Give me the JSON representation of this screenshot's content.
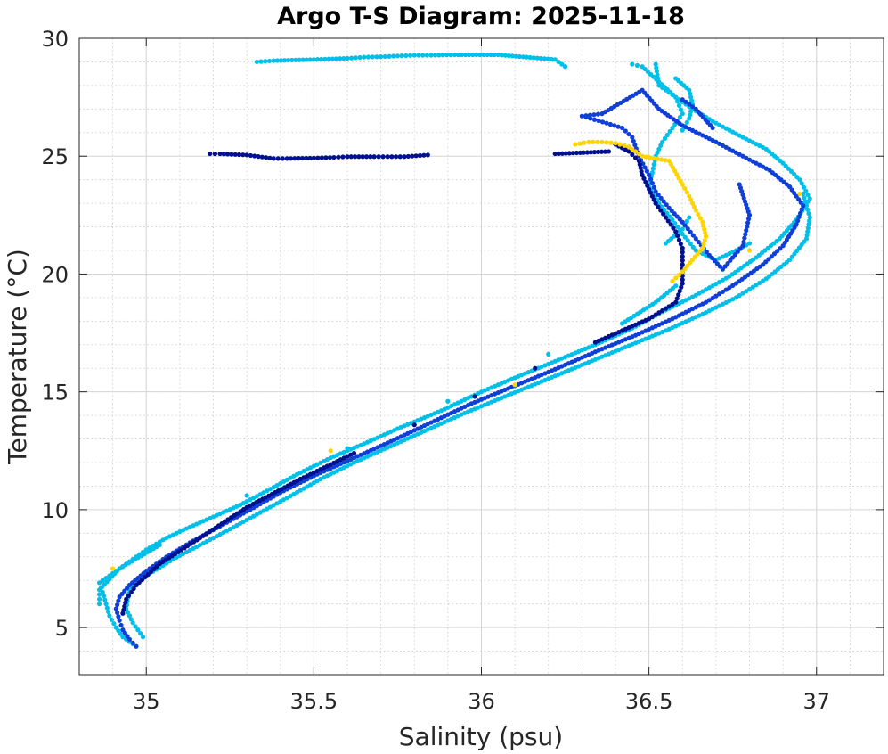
{
  "chart_data": {
    "type": "scatter",
    "title": "Argo T-S Diagram: 2025-11-18",
    "xlabel": "Salinity (psu)",
    "ylabel": "Temperature (°C)",
    "xlim": [
      34.8,
      37.2
    ],
    "ylim": [
      3,
      30
    ],
    "xticks": [
      "35",
      "35.5",
      "36",
      "36.5",
      "37"
    ],
    "yticks": [
      "5",
      "10",
      "15",
      "20",
      "25",
      "30"
    ],
    "grid": true,
    "minor_grid": true,
    "legend": "none",
    "series": [
      {
        "color": "#00bfe8",
        "points": [
          [
            34.96,
            4.3
          ],
          [
            34.93,
            4.6
          ],
          [
            34.91,
            5.0
          ],
          [
            34.89,
            5.5
          ],
          [
            34.88,
            6.0
          ],
          [
            34.87,
            6.5
          ],
          [
            34.86,
            6.9
          ],
          [
            34.9,
            7.3
          ],
          [
            34.95,
            7.8
          ],
          [
            35.0,
            8.3
          ],
          [
            35.06,
            8.8
          ],
          [
            35.12,
            9.2
          ],
          [
            35.2,
            9.7
          ],
          [
            35.28,
            10.2
          ],
          [
            35.36,
            10.8
          ],
          [
            35.45,
            11.5
          ],
          [
            35.55,
            12.2
          ],
          [
            35.65,
            12.8
          ],
          [
            35.76,
            13.5
          ],
          [
            35.88,
            14.2
          ],
          [
            36.0,
            15.0
          ],
          [
            36.1,
            15.6
          ],
          [
            36.22,
            16.3
          ],
          [
            36.34,
            17.0
          ],
          [
            36.45,
            17.7
          ],
          [
            36.54,
            18.4
          ],
          [
            36.64,
            19.1
          ],
          [
            36.74,
            19.9
          ],
          [
            36.82,
            20.7
          ],
          [
            36.89,
            21.5
          ],
          [
            36.94,
            22.3
          ],
          [
            36.98,
            23.2
          ],
          [
            36.95,
            24.0
          ],
          [
            36.9,
            24.7
          ],
          [
            36.85,
            25.3
          ],
          [
            36.78,
            25.8
          ],
          [
            36.7,
            26.4
          ],
          [
            36.63,
            27.0
          ],
          [
            36.58,
            27.5
          ],
          [
            36.53,
            28.0
          ],
          [
            36.52,
            28.9
          ],
          [
            34.99,
            4.6
          ],
          [
            34.96,
            5.2
          ],
          [
            34.94,
            5.8
          ],
          [
            34.95,
            6.6
          ],
          [
            35.0,
            7.2
          ],
          [
            35.08,
            7.9
          ],
          [
            35.16,
            8.5
          ],
          [
            35.24,
            9.1
          ],
          [
            35.33,
            9.8
          ],
          [
            35.42,
            10.5
          ],
          [
            35.52,
            11.3
          ],
          [
            35.62,
            12.0
          ],
          [
            35.73,
            12.7
          ],
          [
            35.84,
            13.4
          ],
          [
            35.95,
            14.1
          ],
          [
            36.07,
            14.8
          ],
          [
            36.19,
            15.5
          ],
          [
            36.31,
            16.2
          ],
          [
            36.43,
            16.9
          ],
          [
            36.55,
            17.6
          ],
          [
            36.66,
            18.3
          ],
          [
            36.76,
            19.0
          ],
          [
            36.85,
            19.8
          ],
          [
            36.92,
            20.6
          ],
          [
            36.97,
            21.5
          ],
          [
            36.98,
            22.4
          ],
          [
            36.96,
            23.4
          ],
          [
            34.86,
            6.0
          ],
          [
            34.86,
            6.6
          ],
          [
            34.92,
            7.5
          ],
          [
            35.04,
            8.5
          ],
          [
            35.3,
            10.6
          ],
          [
            35.6,
            12.6
          ],
          [
            35.9,
            14.6
          ],
          [
            36.2,
            16.6
          ],
          [
            36.42,
            17.9
          ],
          [
            36.52,
            18.8
          ],
          [
            36.58,
            19.5
          ],
          [
            35.33,
            29.0
          ],
          [
            35.38,
            29.05
          ],
          [
            35.5,
            29.1
          ],
          [
            35.6,
            29.15
          ],
          [
            35.65,
            29.2
          ],
          [
            35.7,
            29.22
          ],
          [
            35.75,
            29.25
          ],
          [
            35.8,
            29.28
          ],
          [
            35.85,
            29.28
          ],
          [
            35.92,
            29.3
          ],
          [
            36.05,
            29.3
          ],
          [
            36.22,
            29.1
          ],
          [
            36.25,
            28.8
          ],
          [
            36.45,
            28.9
          ],
          [
            36.48,
            28.8
          ],
          [
            36.58,
            27.5
          ],
          [
            36.6,
            26.8
          ],
          [
            36.57,
            26.2
          ],
          [
            36.54,
            25.6
          ],
          [
            36.52,
            25.0
          ],
          [
            36.51,
            24.3
          ],
          [
            36.5,
            23.7
          ],
          [
            36.53,
            23.0
          ],
          [
            36.57,
            22.3
          ],
          [
            36.6,
            21.7
          ],
          [
            36.64,
            21.0
          ],
          [
            36.7,
            20.6
          ],
          [
            36.76,
            21.0
          ],
          [
            36.8,
            21.3
          ],
          [
            36.58,
            28.3
          ],
          [
            36.62,
            27.8
          ],
          [
            36.63,
            27.2
          ],
          [
            36.62,
            26.6
          ],
          [
            36.6,
            26.1
          ],
          [
            36.62,
            22.4
          ],
          [
            36.6,
            21.9
          ],
          [
            36.55,
            21.3
          ]
        ]
      },
      {
        "color": "#0f3fd8",
        "points": [
          [
            34.97,
            4.2
          ],
          [
            34.95,
            4.5
          ],
          [
            34.93,
            4.9
          ],
          [
            34.92,
            5.3
          ],
          [
            34.91,
            5.8
          ],
          [
            34.92,
            6.3
          ],
          [
            34.95,
            6.8
          ],
          [
            35.0,
            7.4
          ],
          [
            35.06,
            8.0
          ],
          [
            35.13,
            8.6
          ],
          [
            35.22,
            9.3
          ],
          [
            35.31,
            10.0
          ],
          [
            35.41,
            10.8
          ],
          [
            35.51,
            11.5
          ],
          [
            35.62,
            12.2
          ],
          [
            35.73,
            12.9
          ],
          [
            35.85,
            13.7
          ],
          [
            35.97,
            14.5
          ],
          [
            36.09,
            15.2
          ],
          [
            36.21,
            15.9
          ],
          [
            36.34,
            16.7
          ],
          [
            36.46,
            17.4
          ],
          [
            36.57,
            18.1
          ],
          [
            36.67,
            18.8
          ],
          [
            36.76,
            19.6
          ],
          [
            36.84,
            20.4
          ],
          [
            36.9,
            21.2
          ],
          [
            36.94,
            22.1
          ],
          [
            36.96,
            22.9
          ],
          [
            36.92,
            23.7
          ],
          [
            36.86,
            24.4
          ],
          [
            36.78,
            25.0
          ],
          [
            36.7,
            25.6
          ],
          [
            36.6,
            26.3
          ],
          [
            36.53,
            27.0
          ],
          [
            36.48,
            27.8
          ],
          [
            36.36,
            26.8
          ],
          [
            36.3,
            26.7
          ],
          [
            36.35,
            26.5
          ],
          [
            36.42,
            26.2
          ],
          [
            36.45,
            25.8
          ],
          [
            36.47,
            25.0
          ],
          [
            36.5,
            24.2
          ],
          [
            36.52,
            23.5
          ],
          [
            36.56,
            22.8
          ],
          [
            36.6,
            22.2
          ],
          [
            36.64,
            21.5
          ],
          [
            36.68,
            20.8
          ],
          [
            36.72,
            20.2
          ],
          [
            36.78,
            21.2
          ],
          [
            36.8,
            22.5
          ],
          [
            36.77,
            23.8
          ],
          [
            36.6,
            27.4
          ],
          [
            36.64,
            27.0
          ],
          [
            36.69,
            26.2
          ]
        ]
      },
      {
        "color": "#00108e",
        "points": [
          [
            34.93,
            5.6
          ],
          [
            34.94,
            6.2
          ],
          [
            34.97,
            6.8
          ],
          [
            35.04,
            7.7
          ],
          [
            35.16,
            8.8
          ],
          [
            35.3,
            10.1
          ],
          [
            35.46,
            11.3
          ],
          [
            35.62,
            12.4
          ],
          [
            35.8,
            13.6
          ],
          [
            35.98,
            14.8
          ],
          [
            36.16,
            16.0
          ],
          [
            36.34,
            17.1
          ],
          [
            36.5,
            18.1
          ],
          [
            36.58,
            18.8
          ],
          [
            36.6,
            19.6
          ],
          [
            36.6,
            20.4
          ],
          [
            36.6,
            21.1
          ],
          [
            36.58,
            21.8
          ],
          [
            36.55,
            22.4
          ],
          [
            36.52,
            23.0
          ],
          [
            36.5,
            23.6
          ],
          [
            36.48,
            24.2
          ],
          [
            36.47,
            24.8
          ],
          [
            36.44,
            25.2
          ],
          [
            36.4,
            25.5
          ],
          [
            35.19,
            25.1
          ],
          [
            35.22,
            25.1
          ],
          [
            35.3,
            25.05
          ],
          [
            35.38,
            24.9
          ],
          [
            35.42,
            24.9
          ],
          [
            35.5,
            24.92
          ],
          [
            35.56,
            24.95
          ],
          [
            35.6,
            24.98
          ],
          [
            35.68,
            24.98
          ],
          [
            35.72,
            24.98
          ],
          [
            35.77,
            24.98
          ],
          [
            35.84,
            25.05
          ],
          [
            36.22,
            25.1
          ],
          [
            36.38,
            25.2
          ]
        ]
      },
      {
        "color": "#ffd400",
        "points": [
          [
            36.28,
            25.5
          ],
          [
            36.32,
            25.6
          ],
          [
            36.36,
            25.6
          ],
          [
            36.4,
            25.55
          ],
          [
            36.44,
            25.4
          ],
          [
            36.48,
            25.0
          ],
          [
            36.56,
            24.8
          ],
          [
            36.6,
            23.8
          ],
          [
            36.62,
            23.3
          ],
          [
            36.64,
            22.7
          ],
          [
            36.66,
            22.2
          ],
          [
            36.67,
            21.6
          ],
          [
            36.66,
            21.1
          ],
          [
            36.63,
            20.6
          ],
          [
            36.6,
            20.1
          ],
          [
            36.57,
            19.7
          ],
          [
            34.9,
            7.5
          ],
          [
            35.55,
            12.5
          ],
          [
            36.1,
            15.3
          ],
          [
            36.8,
            21.0
          ],
          [
            36.95,
            23.4
          ]
        ]
      }
    ]
  }
}
